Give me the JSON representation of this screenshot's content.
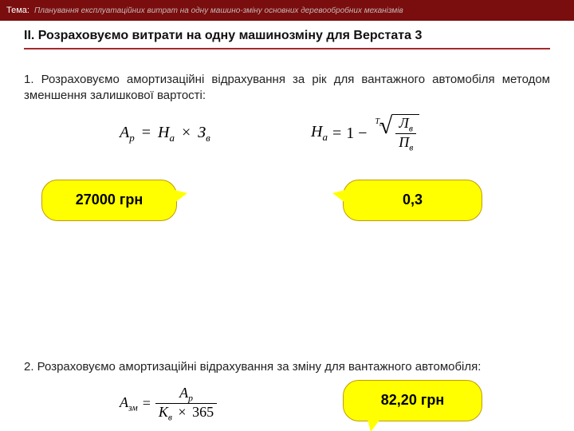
{
  "topbar": {
    "tema_label": "Тема:",
    "topic": "Планування експлуатаційних витрат на одну машино-зміну основних деревообробних механізмів",
    "bg_color": "#7a0d0d"
  },
  "heading": "II. Розраховуємо витрати на одну машинозміну для Верстата 3",
  "hr_color": "#a52a2a",
  "para1": "1. Розраховуємо амортизаційні відрахування за рік для вантажного автомобіля методом зменшення залишкової вартості:",
  "formula1": {
    "lhs_base": "А",
    "lhs_sub": "р",
    "eq": "=",
    "t1_base": "Н",
    "t1_sub": "а",
    "mul": "×",
    "t2_base": "З",
    "t2_sub": "в"
  },
  "formula2": {
    "lhs_base": "Н",
    "lhs_sub": "а",
    "eq": "=",
    "one_minus": "1 −",
    "root_index_base": "Т",
    "root_index_sub": "сл",
    "num_base": "Л",
    "num_sub": "в",
    "den_base": "П",
    "den_sub": "в"
  },
  "callout1": {
    "text": "27000 грн",
    "bg": "#ffff00",
    "border": "#c29a00"
  },
  "callout2": {
    "text": "0,3",
    "bg": "#ffff00",
    "border": "#c29a00"
  },
  "para2": "2. Розраховуємо амортизаційні відрахування за зміну для вантажного автомобіля:",
  "formula3": {
    "lhs_base": "А",
    "lhs_sub": "зм",
    "eq": "=",
    "num_base": "А",
    "num_sub": "р",
    "den_t1_base": "К",
    "den_t1_sub": "в",
    "den_mul": "×",
    "den_t2": "365"
  },
  "callout3": {
    "text": "82,20 грн",
    "bg": "#ffff00",
    "border": "#c29a00"
  }
}
